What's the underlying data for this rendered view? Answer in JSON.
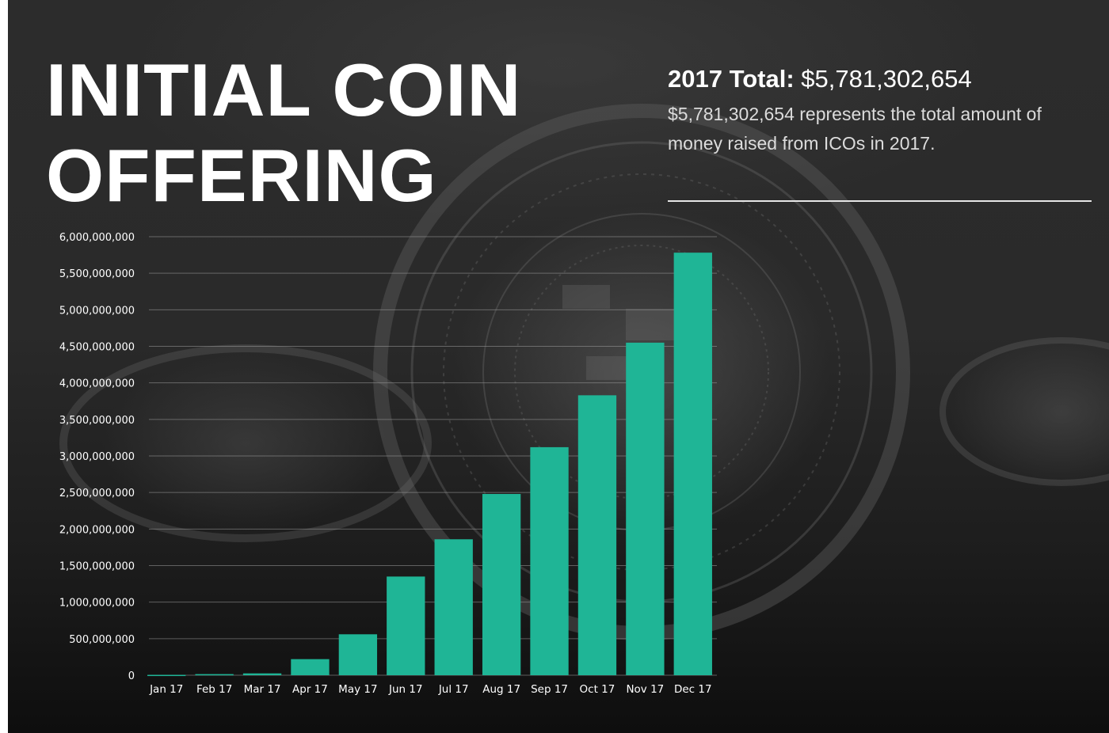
{
  "title_lines": [
    "INITIAL COIN",
    "OFFERING"
  ],
  "summary": {
    "label": "2017 Total:",
    "value": "$5,781,302,654",
    "description": "$5,781,302,654 represents the total amount of money raised from ICOs in 2017."
  },
  "colors": {
    "bar": "#1fb596",
    "text": "#ffffff",
    "gridline": "#9a9a9a"
  },
  "chart_data": {
    "type": "bar",
    "categories": [
      "Jan 17",
      "Feb 17",
      "Mar 17",
      "Apr 17",
      "May 17",
      "Jun 17",
      "Jul 17",
      "Aug 17",
      "Sep 17",
      "Oct 17",
      "Nov 17",
      "Dec 17"
    ],
    "values": [
      5000000,
      15000000,
      25000000,
      220000000,
      560000000,
      1350000000,
      1860000000,
      2480000000,
      3120000000,
      3830000000,
      4550000000,
      5781302654
    ],
    "yticks": [
      0,
      500000000,
      1000000000,
      1500000000,
      2000000000,
      2500000000,
      3000000000,
      3500000000,
      4000000000,
      4500000000,
      5000000000,
      5500000000,
      6000000000
    ],
    "ytick_labels": [
      "0",
      "500,000,000",
      "1,000,000,000",
      "1,500,000,000",
      "2,000,000,000",
      "2,500,000,000",
      "3,000,000,000",
      "3,500,000,000",
      "4,000,000,000",
      "4,500,000,000",
      "5,000,000,000",
      "5,500,000,000",
      "6,000,000,000"
    ],
    "ylim": [
      0,
      6000000000
    ],
    "grid": true,
    "legend": "none",
    "title": "",
    "xlabel": "",
    "ylabel": ""
  }
}
